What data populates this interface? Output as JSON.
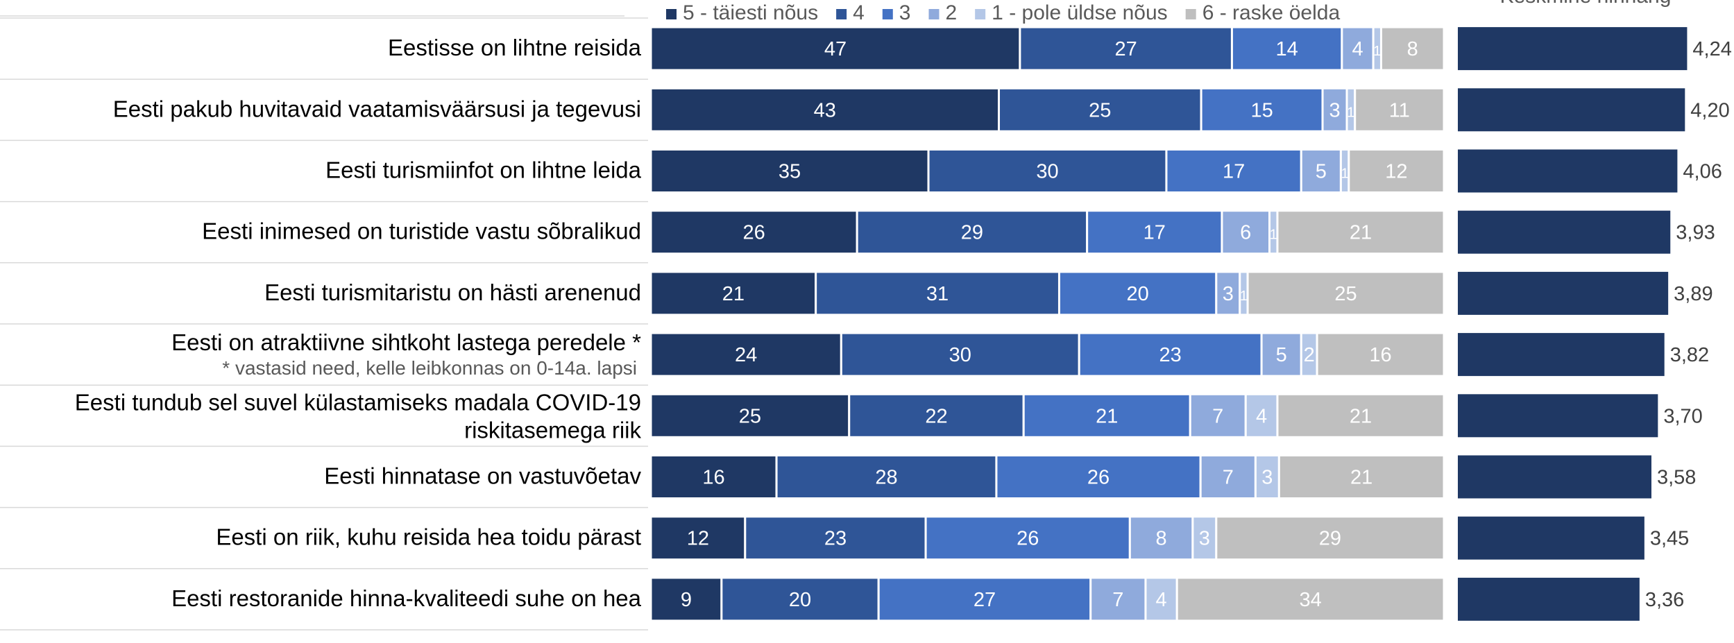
{
  "chart_data": [
    {
      "type": "bar",
      "orientation": "horizontal",
      "stacked": true,
      "percent": true,
      "legend_position": "top",
      "series": [
        {
          "name": "5 - täiesti nõus",
          "color": "#1f3864",
          "values": [
            47,
            43,
            35,
            26,
            21,
            24,
            25,
            16,
            12,
            9
          ]
        },
        {
          "name": "4",
          "color": "#2f5597",
          "values": [
            27,
            25,
            30,
            29,
            31,
            30,
            22,
            28,
            23,
            20
          ]
        },
        {
          "name": "3",
          "color": "#4472c4",
          "values": [
            14,
            15,
            17,
            17,
            20,
            23,
            21,
            26,
            26,
            27
          ]
        },
        {
          "name": "2",
          "color": "#8faadc",
          "values": [
            4,
            3,
            5,
            6,
            3,
            5,
            7,
            7,
            8,
            7
          ]
        },
        {
          "name": "1 - pole üldse nõus",
          "color": "#b4c7e7",
          "values": [
            1,
            1,
            1,
            1,
            1,
            2,
            4,
            3,
            3,
            4
          ]
        },
        {
          "name": "6 - raske öelda",
          "color": "#bfbfbf",
          "values": [
            8,
            11,
            12,
            21,
            25,
            16,
            21,
            21,
            29,
            34
          ]
        }
      ],
      "categories": [
        {
          "lines": [
            "Eestisse on lihtne reisida"
          ]
        },
        {
          "lines": [
            "Eesti pakub huvitavaid vaatamisväärsusi ja tegevusi"
          ]
        },
        {
          "lines": [
            "Eesti turismiinfot on lihtne leida"
          ]
        },
        {
          "lines": [
            "Eesti inimesed on turistide vastu sõbralikud"
          ]
        },
        {
          "lines": [
            "Eesti turismitaristu on hästi arenenud"
          ]
        },
        {
          "lines": [
            "Eesti on atraktiivne sihtkoht lastega peredele *"
          ],
          "note": "* vastasid need, kelle leibkonnas on 0-14a. lapsi"
        },
        {
          "lines": [
            "Eesti tundub sel suvel külastamiseks madala COVID-19",
            "riskitasemega riik"
          ]
        },
        {
          "lines": [
            "Eesti hinnatase on vastuvõetav"
          ]
        },
        {
          "lines": [
            "Eesti on riik, kuhu reisida hea toidu pärast"
          ]
        },
        {
          "lines": [
            "Eesti restoranide hinna-kvaliteedi suhe on hea"
          ]
        }
      ]
    },
    {
      "type": "bar",
      "orientation": "horizontal",
      "title": "Keskmine hinnang",
      "color": "#1f3864",
      "xlim": [
        0,
        4.35
      ],
      "values": [
        4.24,
        4.2,
        4.06,
        3.93,
        3.89,
        3.82,
        3.7,
        3.58,
        3.45,
        3.36
      ],
      "value_labels": [
        "4,24",
        "4,20",
        "4,06",
        "3,93",
        "3,89",
        "3,82",
        "3,70",
        "3,58",
        "3,45",
        "3,36"
      ]
    }
  ]
}
